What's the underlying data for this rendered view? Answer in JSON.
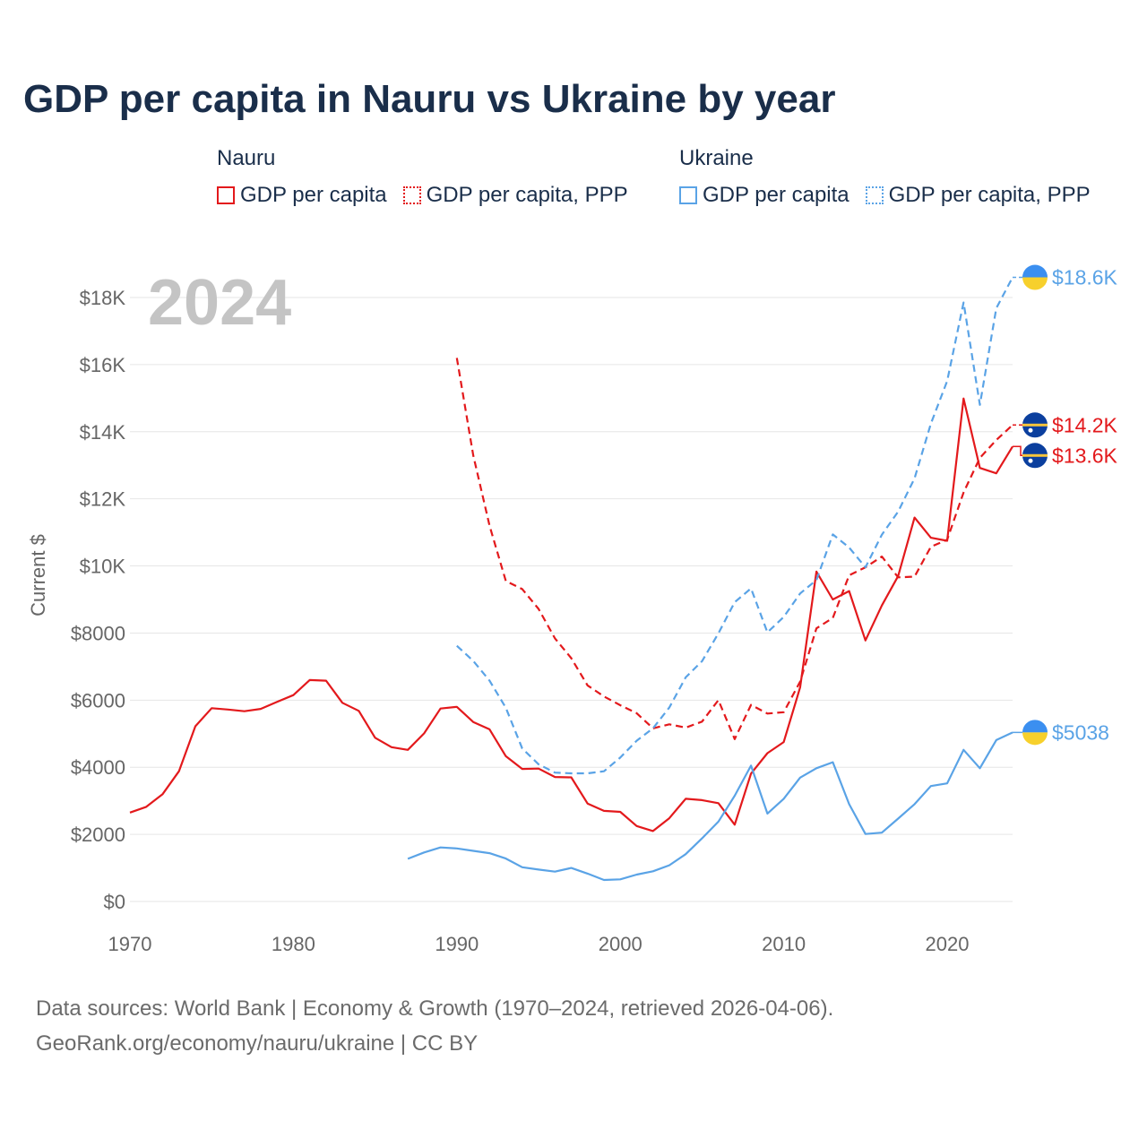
{
  "title": "GDP per capita in Nauru vs Ukraine by year",
  "legend": {
    "nauru": {
      "name": "Nauru",
      "solid": "GDP per capita",
      "dashed": "GDP per capita, PPP"
    },
    "ukraine": {
      "name": "Ukraine",
      "solid": "GDP per capita",
      "dashed": "GDP per capita, PPP"
    }
  },
  "colors": {
    "nauru": "#e3191c",
    "ukraine": "#5aa3e6",
    "grid": "#e6e6e6",
    "axis_text": "#666666",
    "year_watermark": "#c4c4c4"
  },
  "footer": {
    "line1": "Data sources: World Bank | Economy & Growth (1970–2024, retrieved 2026-04-06).",
    "line2": "GeoRank.org/economy/nauru/ukraine | CC BY"
  },
  "chart_data": {
    "type": "line",
    "title": "GDP per capita in Nauru vs Ukraine by year",
    "current_year_label": "2024",
    "ylabel": "Current $",
    "xlabel": "",
    "xlim": [
      1970,
      2024
    ],
    "ylim": [
      0,
      18000
    ],
    "x_ticks": [
      1970,
      1980,
      1990,
      2000,
      2010,
      2020
    ],
    "y_ticks": [
      0,
      2000,
      4000,
      6000,
      8000,
      10000,
      12000,
      14000,
      16000,
      18000
    ],
    "y_tick_labels": [
      "$0",
      "$2000",
      "$4000",
      "$6000",
      "$8000",
      "$10K",
      "$12K",
      "$14K",
      "$16K",
      "$18K"
    ],
    "series": [
      {
        "name": "Nauru GDP per capita",
        "country": "nauru",
        "style": "solid",
        "end_label": "$13.6K",
        "flag": "nauru",
        "x": [
          1970,
          1971,
          1972,
          1973,
          1974,
          1975,
          1976,
          1977,
          1978,
          1979,
          1980,
          1981,
          1982,
          1983,
          1984,
          1985,
          1986,
          1987,
          1988,
          1989,
          1990,
          1991,
          1992,
          1993,
          1994,
          1995,
          1996,
          1997,
          1998,
          1999,
          2000,
          2001,
          2002,
          2003,
          2004,
          2005,
          2006,
          2007,
          2008,
          2009,
          2010,
          2011,
          2012,
          2013,
          2014,
          2015,
          2016,
          2017,
          2018,
          2019,
          2020,
          2021,
          2022,
          2023,
          2024
        ],
        "y": [
          2650,
          2820,
          3200,
          3880,
          5220,
          5760,
          5720,
          5670,
          5740,
          5950,
          6150,
          6600,
          6580,
          5920,
          5680,
          4880,
          4600,
          4520,
          5010,
          5750,
          5800,
          5350,
          5130,
          4330,
          3950,
          3960,
          3710,
          3700,
          2920,
          2700,
          2670,
          2250,
          2100,
          2480,
          3060,
          3020,
          2930,
          2290,
          3810,
          4420,
          4750,
          6380,
          9830,
          9000,
          9250,
          7780,
          8820,
          9700,
          11440,
          10840,
          10750,
          14990,
          12920,
          12760,
          13560
        ]
      },
      {
        "name": "Nauru GDP per capita, PPP",
        "country": "nauru",
        "style": "dashed",
        "end_label": "$14.2K",
        "flag": "nauru",
        "x": [
          1990,
          1991,
          1992,
          1993,
          1994,
          1995,
          1996,
          1997,
          1998,
          1999,
          2000,
          2001,
          2002,
          2003,
          2004,
          2005,
          2006,
          2007,
          2008,
          2009,
          2010,
          2011,
          2012,
          2013,
          2014,
          2015,
          2016,
          2017,
          2018,
          2019,
          2020,
          2021,
          2022,
          2023,
          2024
        ],
        "y": [
          16200,
          13300,
          11200,
          9550,
          9310,
          8720,
          7840,
          7250,
          6440,
          6110,
          5850,
          5610,
          5160,
          5280,
          5180,
          5360,
          6000,
          4840,
          5860,
          5600,
          5640,
          6550,
          8140,
          8450,
          9720,
          9960,
          10280,
          9660,
          9680,
          10570,
          10780,
          12190,
          13220,
          13750,
          14200
        ]
      },
      {
        "name": "Ukraine GDP per capita",
        "country": "ukraine",
        "style": "solid",
        "end_label": "$5038",
        "flag": "ukraine",
        "x": [
          1987,
          1988,
          1989,
          1990,
          1991,
          1992,
          1993,
          1994,
          1995,
          1996,
          1997,
          1998,
          1999,
          2000,
          2001,
          2002,
          2003,
          2004,
          2005,
          2006,
          2007,
          2008,
          2009,
          2010,
          2011,
          2012,
          2013,
          2014,
          2015,
          2016,
          2017,
          2018,
          2019,
          2020,
          2021,
          2022,
          2023,
          2024
        ],
        "y": [
          1270,
          1460,
          1610,
          1580,
          1510,
          1440,
          1280,
          1020,
          950,
          890,
          1000,
          830,
          640,
          660,
          800,
          900,
          1080,
          1410,
          1880,
          2380,
          3150,
          4050,
          2620,
          3060,
          3690,
          3970,
          4150,
          2900,
          2010,
          2050,
          2470,
          2900,
          3440,
          3520,
          4520,
          3970,
          4810,
          5038
        ]
      },
      {
        "name": "Ukraine GDP per capita, PPP",
        "country": "ukraine",
        "style": "dashed",
        "end_label": "$18.6K",
        "flag": "ukraine",
        "x": [
          1990,
          1991,
          1992,
          1993,
          1994,
          1995,
          1996,
          1997,
          1998,
          1999,
          2000,
          2001,
          2002,
          2003,
          2004,
          2005,
          2006,
          2007,
          2008,
          2009,
          2010,
          2011,
          2012,
          2013,
          2014,
          2015,
          2016,
          2017,
          2018,
          2019,
          2020,
          2021,
          2022,
          2023,
          2024
        ],
        "y": [
          7620,
          7170,
          6580,
          5770,
          4560,
          4090,
          3840,
          3820,
          3820,
          3880,
          4290,
          4790,
          5160,
          5780,
          6680,
          7160,
          7990,
          8920,
          9330,
          8020,
          8480,
          9180,
          9580,
          10940,
          10550,
          9960,
          10930,
          11620,
          12610,
          14240,
          15510,
          17850,
          14800,
          17680,
          18600
        ]
      }
    ]
  }
}
